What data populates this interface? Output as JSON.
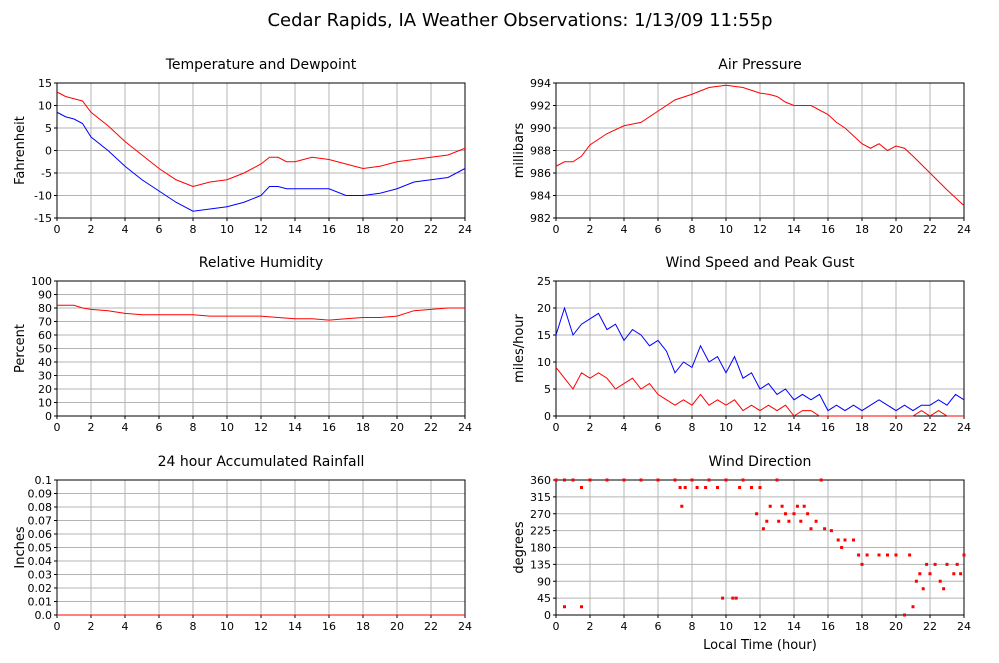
{
  "title": "Cedar Rapids, IA Weather Observations: 1/13/09 11:55p",
  "chart_data": [
    {
      "type": "line",
      "title": "Temperature and Dewpoint",
      "ylabel": "Fahrenheit",
      "xlim": [
        0,
        24
      ],
      "xticks": [
        0,
        2,
        4,
        6,
        8,
        10,
        12,
        14,
        16,
        18,
        20,
        22,
        24
      ],
      "ylim": [
        -15,
        15
      ],
      "yticks": [
        -15,
        -10,
        -5,
        0,
        5,
        10,
        15
      ],
      "grid": true,
      "series": [
        {
          "name": "Temperature",
          "color": "#ff0000",
          "x": [
            0,
            0.5,
            1,
            1.5,
            2,
            3,
            4,
            5,
            6,
            7,
            8,
            9,
            10,
            11,
            12,
            12.5,
            13,
            13.5,
            14,
            15,
            16,
            17,
            18,
            19,
            20,
            21,
            22,
            23,
            24
          ],
          "values": [
            13,
            12,
            11.5,
            11,
            8.5,
            5.5,
            2,
            -1,
            -4,
            -6.5,
            -8,
            -7,
            -6.5,
            -5,
            -3,
            -1.5,
            -1.5,
            -2.5,
            -2.5,
            -1.5,
            -2,
            -3,
            -4,
            -3.5,
            -2.5,
            -2,
            -1.5,
            -1,
            0.5
          ]
        },
        {
          "name": "Dewpoint",
          "color": "#0000ff",
          "x": [
            0,
            0.5,
            1,
            1.5,
            2,
            3,
            4,
            5,
            6,
            7,
            8,
            9,
            10,
            11,
            12,
            12.5,
            13,
            13.5,
            14,
            15,
            16,
            17,
            18,
            19,
            20,
            21,
            22,
            23,
            24
          ],
          "values": [
            8.5,
            7.5,
            7,
            6,
            3,
            0,
            -3.5,
            -6.5,
            -9,
            -11.5,
            -13.5,
            -13,
            -12.5,
            -11.5,
            -10,
            -8,
            -8,
            -8.5,
            -8.5,
            -8.5,
            -8.5,
            -10,
            -10,
            -9.5,
            -8.5,
            -7,
            -6.5,
            -6,
            -4
          ]
        }
      ]
    },
    {
      "type": "line",
      "title": "Air Pressure",
      "ylabel": "millibars",
      "xlim": [
        0,
        24
      ],
      "xticks": [
        0,
        2,
        4,
        6,
        8,
        10,
        12,
        14,
        16,
        18,
        20,
        22,
        24
      ],
      "ylim": [
        982,
        994
      ],
      "yticks": [
        982,
        984,
        986,
        988,
        990,
        992,
        994
      ],
      "grid": true,
      "series": [
        {
          "name": "Pressure",
          "color": "#ff0000",
          "x": [
            0,
            0.5,
            1,
            1.5,
            2,
            3,
            4,
            5,
            6,
            7,
            8,
            9,
            10,
            11,
            12,
            12.5,
            13,
            13.5,
            14,
            15,
            16,
            16.5,
            17,
            18,
            18.5,
            19,
            19.5,
            20,
            20.5,
            21,
            22,
            23,
            24
          ],
          "values": [
            986.6,
            987,
            987,
            987.5,
            988.5,
            989.5,
            990.2,
            990.5,
            991.5,
            992.5,
            993,
            993.6,
            993.8,
            993.6,
            993.1,
            993,
            992.8,
            992.3,
            992,
            992,
            991.2,
            990.5,
            990,
            988.6,
            988.2,
            988.6,
            988,
            988.4,
            988.2,
            987.5,
            986,
            984.5,
            983.1
          ]
        }
      ]
    },
    {
      "type": "line",
      "title": "Relative Humidity",
      "ylabel": "Percent",
      "xlim": [
        0,
        24
      ],
      "xticks": [
        0,
        2,
        4,
        6,
        8,
        10,
        12,
        14,
        16,
        18,
        20,
        22,
        24
      ],
      "ylim": [
        0,
        100
      ],
      "yticks": [
        0,
        10,
        20,
        30,
        40,
        50,
        60,
        70,
        80,
        90,
        100
      ],
      "grid": true,
      "series": [
        {
          "name": "Humidity",
          "color": "#ff0000",
          "x": [
            0,
            1,
            1.5,
            2,
            3,
            4,
            5,
            6,
            7,
            8,
            9,
            10,
            11,
            12,
            13,
            14,
            15,
            16,
            17,
            18,
            19,
            20,
            21,
            22,
            23,
            24
          ],
          "values": [
            82,
            82,
            80,
            79,
            78,
            76,
            75,
            75,
            75,
            75,
            74,
            74,
            74,
            74,
            73,
            72,
            72,
            71,
            72,
            73,
            73,
            74,
            78,
            79,
            80,
            80
          ]
        }
      ]
    },
    {
      "type": "line",
      "title": "Wind Speed and Peak Gust",
      "ylabel": "miles/hour",
      "xlim": [
        0,
        24
      ],
      "xticks": [
        0,
        2,
        4,
        6,
        8,
        10,
        12,
        14,
        16,
        18,
        20,
        22,
        24
      ],
      "ylim": [
        0,
        25
      ],
      "yticks": [
        0,
        5,
        10,
        15,
        20,
        25
      ],
      "grid": true,
      "series": [
        {
          "name": "Peak Gust",
          "color": "#0000ff",
          "x": [
            0,
            0.5,
            1,
            1.5,
            2,
            2.5,
            3,
            3.5,
            4,
            4.5,
            5,
            5.5,
            6,
            6.5,
            7,
            7.5,
            8,
            8.5,
            9,
            9.5,
            10,
            10.5,
            11,
            11.5,
            12,
            12.5,
            13,
            13.5,
            14,
            14.5,
            15,
            15.5,
            16,
            16.5,
            17,
            17.5,
            18,
            18.5,
            19,
            19.5,
            20,
            20.5,
            21,
            21.5,
            22,
            22.5,
            23,
            23.5,
            24
          ],
          "values": [
            15,
            20,
            15,
            17,
            18,
            19,
            16,
            17,
            14,
            16,
            15,
            13,
            14,
            12,
            8,
            10,
            9,
            13,
            10,
            11,
            8,
            11,
            7,
            8,
            5,
            6,
            4,
            5,
            3,
            4,
            3,
            4,
            1,
            2,
            1,
            2,
            1,
            2,
            3,
            2,
            1,
            2,
            1,
            2,
            2,
            3,
            2,
            4,
            3
          ]
        },
        {
          "name": "Wind Speed",
          "color": "#ff0000",
          "x": [
            0,
            0.5,
            1,
            1.5,
            2,
            2.5,
            3,
            3.5,
            4,
            4.5,
            5,
            5.5,
            6,
            6.5,
            7,
            7.5,
            8,
            8.5,
            9,
            9.5,
            10,
            10.5,
            11,
            11.5,
            12,
            12.5,
            13,
            13.5,
            14,
            14.5,
            15,
            15.5,
            16,
            16.5,
            17,
            17.5,
            18,
            18.5,
            19,
            19.5,
            20,
            20.5,
            21,
            21.5,
            22,
            22.5,
            23,
            23.5,
            24
          ],
          "values": [
            9,
            7,
            5,
            8,
            7,
            8,
            7,
            5,
            6,
            7,
            5,
            6,
            4,
            3,
            2,
            3,
            2,
            4,
            2,
            3,
            2,
            3,
            1,
            2,
            1,
            2,
            1,
            2,
            0,
            1,
            1,
            0,
            0,
            0,
            0,
            0,
            0,
            0,
            0,
            0,
            0,
            0,
            0,
            1,
            0,
            1,
            0,
            0,
            0
          ]
        }
      ]
    },
    {
      "type": "line",
      "title": "24 hour Accumulated Rainfall",
      "ylabel": "Inches",
      "xlim": [
        0,
        24
      ],
      "xticks": [
        0,
        2,
        4,
        6,
        8,
        10,
        12,
        14,
        16,
        18,
        20,
        22,
        24
      ],
      "ylim": [
        0,
        0.1
      ],
      "yticks": [
        {
          "value": 0,
          "label": "0.0"
        },
        0.01,
        0.02,
        0.03,
        0.04,
        0.05,
        0.06,
        0.07,
        0.08,
        0.09,
        0.1
      ],
      "grid": true,
      "series": [
        {
          "name": "Rainfall",
          "color": "#ff0000",
          "x": [
            0,
            24
          ],
          "values": [
            0,
            0
          ]
        }
      ]
    },
    {
      "type": "scatter",
      "title": "Wind Direction",
      "ylabel": "degrees",
      "xlabel": "Local Time (hour)",
      "xlim": [
        0,
        24
      ],
      "xticks": [
        0,
        2,
        4,
        6,
        8,
        10,
        12,
        14,
        16,
        18,
        20,
        22,
        24
      ],
      "ylim": [
        0,
        360
      ],
      "yticks": [
        0,
        45,
        90,
        135,
        180,
        225,
        270,
        315,
        360
      ],
      "grid": true,
      "series": [
        {
          "name": "Direction",
          "color": "#ff0000",
          "x": [
            0.5,
            1.5,
            0,
            0.5,
            1,
            1.5,
            2,
            3,
            4,
            5,
            6,
            7,
            7.3,
            7.4,
            7.6,
            8,
            8.3,
            8.8,
            9,
            9.5,
            9.8,
            10,
            10.4,
            10.6,
            10.8,
            11,
            11.5,
            11.8,
            12,
            12.2,
            12.4,
            12.6,
            13,
            13.1,
            13.3,
            13.5,
            13.7,
            14,
            14.2,
            14.4,
            14.6,
            14.8,
            15,
            15.3,
            15.6,
            15.8,
            16.2,
            16.6,
            16.8,
            17,
            17.5,
            17.8,
            18,
            18.3,
            19,
            19.5,
            20,
            20.5,
            20.8,
            21,
            21.2,
            21.4,
            21.6,
            21.8,
            22,
            22.3,
            22.6,
            22.8,
            23,
            23.4,
            23.6,
            23.8,
            24
          ],
          "values": [
            22,
            22,
            360,
            360,
            360,
            340,
            360,
            360,
            360,
            360,
            360,
            360,
            340,
            290,
            340,
            360,
            340,
            340,
            360,
            340,
            45,
            360,
            45,
            45,
            340,
            360,
            340,
            270,
            340,
            230,
            250,
            290,
            360,
            250,
            290,
            270,
            250,
            270,
            290,
            250,
            290,
            270,
            230,
            250,
            360,
            230,
            225,
            200,
            180,
            200,
            200,
            160,
            135,
            160,
            160,
            160,
            160,
            0,
            160,
            22,
            90,
            110,
            70,
            135,
            110,
            135,
            90,
            70,
            135,
            110,
            135,
            110,
            160
          ]
        }
      ]
    }
  ]
}
